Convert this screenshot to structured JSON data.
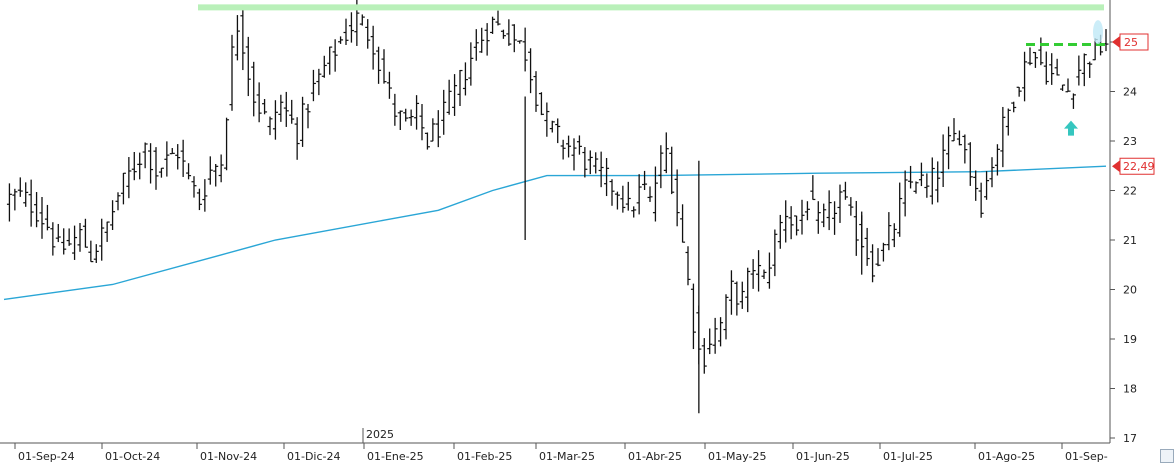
{
  "chart_data": {
    "type": "ohlc",
    "year_marker": "2025",
    "ylim": [
      17,
      26
    ],
    "y_ticks": [
      17,
      18,
      19,
      20,
      21,
      22,
      23,
      24,
      25
    ],
    "x_labels": [
      "01-Sep-24",
      "01-Oct-24",
      "01-Nov-24",
      "01-Dic-24",
      "01-Ene-25",
      "01-Feb-25",
      "01-Mar-25",
      "01-Abr-25",
      "01-May-25",
      "01-Jun-25",
      "01-Jul-25",
      "01-Ago-25",
      "01-Sep-"
    ],
    "last_price_label": "25",
    "ma_label": "22,49",
    "colors": {
      "bars": "#111111",
      "moving_average": "#2aa6d6",
      "resistance_high": "#b9f0b9",
      "resistance_recent": "#33cc33",
      "last_price_badge": "#e03030",
      "arrow": "#35c6bf",
      "grid": "#999999"
    },
    "resistance_high_level": 25.7,
    "resistance_recent_level": 24.95,
    "arrow_value": 23.25,
    "ohlc_segments": [
      {
        "from": 0,
        "to": 8,
        "values": [
          21.8,
          21.9,
          21.7,
          21.3
        ]
      },
      {
        "from": 8,
        "to": 16,
        "values": [
          21.3,
          20.8,
          20.9,
          21.1,
          20.7
        ]
      },
      {
        "from": 16,
        "to": 24,
        "values": [
          20.7,
          21.2,
          22.0,
          22.5
        ]
      },
      {
        "from": 24,
        "to": 32,
        "values": [
          22.5,
          22.9,
          22.4,
          22.6,
          22.8
        ]
      },
      {
        "from": 32,
        "to": 40,
        "values": [
          22.8,
          22.2,
          21.8,
          22.4,
          22.6
        ]
      },
      {
        "from": 40,
        "to": 44,
        "values": [
          22.6,
          24.0,
          25.5,
          25.0
        ]
      },
      {
        "from": 44,
        "to": 54,
        "values": [
          25.0,
          24.0,
          23.6,
          23.3,
          23.8,
          23.5,
          23.2
        ]
      },
      {
        "from": 54,
        "to": 68,
        "values": [
          23.2,
          24.0,
          24.6,
          25.1,
          25.5,
          25.0
        ]
      },
      {
        "from": 68,
        "to": 80,
        "values": [
          25.0,
          24.2,
          23.6,
          23.3,
          23.5,
          23.0,
          23.3
        ]
      },
      {
        "from": 80,
        "to": 96,
        "values": [
          23.3,
          24.0,
          24.8,
          25.4,
          25.2,
          24.8
        ]
      },
      {
        "from": 96,
        "to": 112,
        "values": [
          24.8,
          23.5,
          23.0,
          22.8,
          22.4,
          22.1
        ]
      },
      {
        "from": 112,
        "to": 122,
        "values": [
          22.1,
          22.0,
          21.6,
          21.8,
          22.1,
          21.7,
          22.5,
          22.8
        ]
      },
      {
        "from": 122,
        "to": 130,
        "values": [
          22.8,
          21.9,
          20.8,
          19.5,
          18.5,
          19.0
        ]
      },
      {
        "from": 130,
        "to": 140,
        "values": [
          19.0,
          19.3,
          20.0,
          19.8,
          20.5,
          20.2
        ]
      },
      {
        "from": 140,
        "to": 156,
        "values": [
          20.2,
          21.0,
          21.6,
          21.2,
          21.8,
          21.3,
          21.5,
          21.9,
          21.4
        ]
      },
      {
        "from": 156,
        "to": 168,
        "values": [
          21.4,
          21.0,
          20.5,
          20.8,
          21.3,
          22.0,
          22.3
        ]
      },
      {
        "from": 168,
        "to": 182,
        "values": [
          22.3,
          22.0,
          22.4,
          22.9,
          23.2,
          22.4,
          21.8,
          22.6
        ]
      },
      {
        "from": 182,
        "to": 194,
        "values": [
          22.6,
          23.4,
          24.2,
          24.8,
          24.5,
          24.2
        ]
      },
      {
        "from": 194,
        "to": 203,
        "values": [
          24.2,
          24.0,
          24.6,
          24.8,
          25.0
        ]
      }
    ],
    "ma_points": [
      [
        0,
        19.8
      ],
      [
        20,
        20.1
      ],
      [
        40,
        20.7
      ],
      [
        50,
        21.0
      ],
      [
        70,
        21.4
      ],
      [
        80,
        21.6
      ],
      [
        90,
        22.0
      ],
      [
        100,
        22.3
      ],
      [
        120,
        22.3
      ],
      [
        150,
        22.35
      ],
      [
        180,
        22.38
      ],
      [
        203,
        22.49
      ]
    ]
  }
}
